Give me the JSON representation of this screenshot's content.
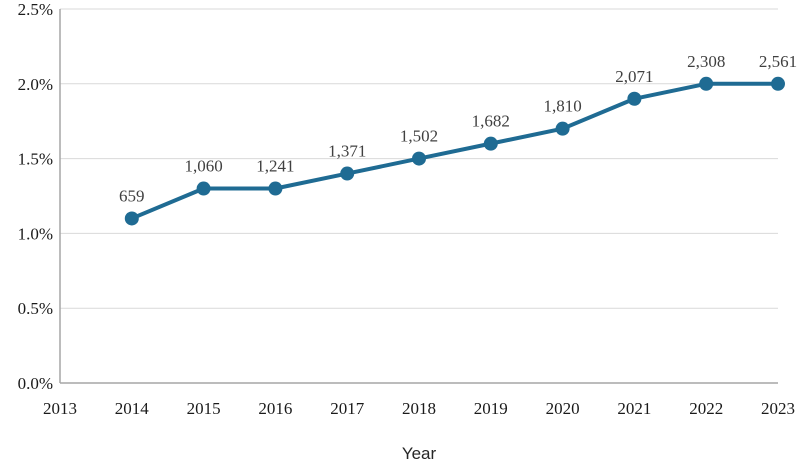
{
  "page": {
    "background": "#ffffff"
  },
  "chart_data": {
    "type": "line",
    "title": "",
    "xlabel": "Year",
    "ylabel": "",
    "x": [
      2014,
      2015,
      2016,
      2017,
      2018,
      2019,
      2020,
      2021,
      2022,
      2023
    ],
    "values_pct": [
      1.1,
      1.3,
      1.3,
      1.4,
      1.5,
      1.6,
      1.7,
      1.9,
      2.0,
      2.0
    ],
    "point_labels": [
      "659",
      "1,060",
      "1,241",
      "1,371",
      "1,502",
      "1,682",
      "1,810",
      "2,071",
      "2,308",
      "2,561"
    ],
    "x_ticks": [
      2013,
      2014,
      2015,
      2016,
      2017,
      2018,
      2019,
      2020,
      2021,
      2022,
      2023
    ],
    "y_ticks": [
      0.0,
      0.5,
      1.0,
      1.5,
      2.0,
      2.5
    ],
    "y_tick_labels": [
      "0.0%",
      "0.5%",
      "1.0%",
      "1.5%",
      "2.0%",
      "2.5%"
    ],
    "xlim": [
      2013,
      2023
    ],
    "ylim": [
      0.0,
      2.5
    ],
    "grid": true,
    "legend": "none",
    "colors": {
      "line": "#1f6b93",
      "marker": "#1f6b93",
      "gridline": "#d9d9d9",
      "axis": "#a6a6a6",
      "tick_text": "#1a1a1a",
      "point_label_text": "#404040",
      "axis_title_text": "#262626"
    }
  }
}
